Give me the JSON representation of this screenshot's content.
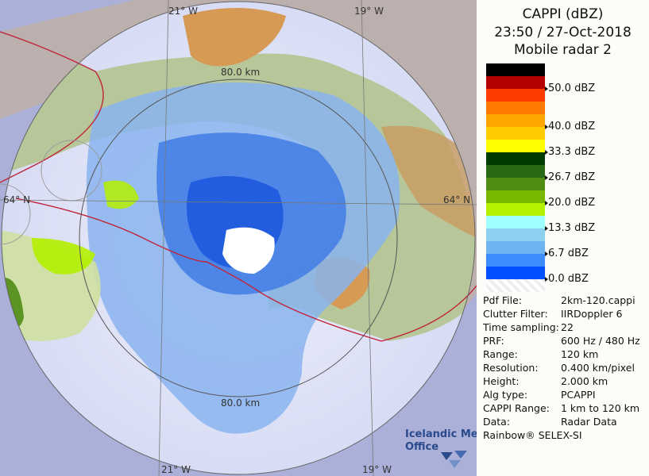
{
  "header": {
    "line1": "CAPPI (dBZ)",
    "line2": "23:50 / 27-Oct-2018",
    "line3": "Mobile radar 2"
  },
  "legend": [
    {
      "color": "#000000",
      "label": ""
    },
    {
      "color": "#b40000",
      "label": "50.0 dBZ"
    },
    {
      "color": "#ff3c00",
      "label": ""
    },
    {
      "color": "#ff7800",
      "label": ""
    },
    {
      "color": "#ffa500",
      "label": "40.0 dBZ"
    },
    {
      "color": "#ffcc00",
      "label": ""
    },
    {
      "color": "#ffff00",
      "label": "33.3 dBZ"
    },
    {
      "color": "#003c00",
      "label": ""
    },
    {
      "color": "#2a6a14",
      "label": "26.7 dBZ"
    },
    {
      "color": "#4e8c14",
      "label": ""
    },
    {
      "color": "#7ab800",
      "label": "20.0 dBZ"
    },
    {
      "color": "#b4f000",
      "label": ""
    },
    {
      "color": "#a0ffff",
      "label": "13.3 dBZ"
    },
    {
      "color": "#8cd2f0",
      "label": ""
    },
    {
      "color": "#6eb4f0",
      "label": "6.7 dBZ"
    },
    {
      "color": "#3c8cff",
      "label": ""
    },
    {
      "color": "#0050ff",
      "label": "0.0 dBZ"
    },
    {
      "color": "#ffffff",
      "label": ""
    }
  ],
  "info": [
    {
      "key": "Pdf File:",
      "value": "2km-120.cappi"
    },
    {
      "key": "Clutter Filter:",
      "value": "IIRDoppler 6"
    },
    {
      "key": "Time sampling:",
      "value": "22"
    },
    {
      "key": "PRF:",
      "value": "600 Hz / 480 Hz"
    },
    {
      "key": "Range:",
      "value": "120 km"
    },
    {
      "key": "Resolution:",
      "value": "0.400 km/pixel"
    },
    {
      "key": "Height:",
      "value": "2.000 km"
    },
    {
      "key": "Alg type:",
      "value": "PCAPPI"
    },
    {
      "key": "CAPPI Range:",
      "value": "1 km to 120 km"
    },
    {
      "key": "Data:",
      "value": "Radar Data"
    }
  ],
  "footer": "Rainbow® SELEX-SI",
  "map": {
    "lon_top_left": "21° W",
    "lon_top_right": "19° W",
    "lon_bottom_left": "21° W",
    "lon_bottom_right": "19° W",
    "lat_left": "64° N",
    "lat_right": "64° N",
    "range_top": "80.0 km",
    "range_bottom": "80.0 km",
    "logo_line1": "Icelandic Met",
    "logo_line2": "Office"
  }
}
